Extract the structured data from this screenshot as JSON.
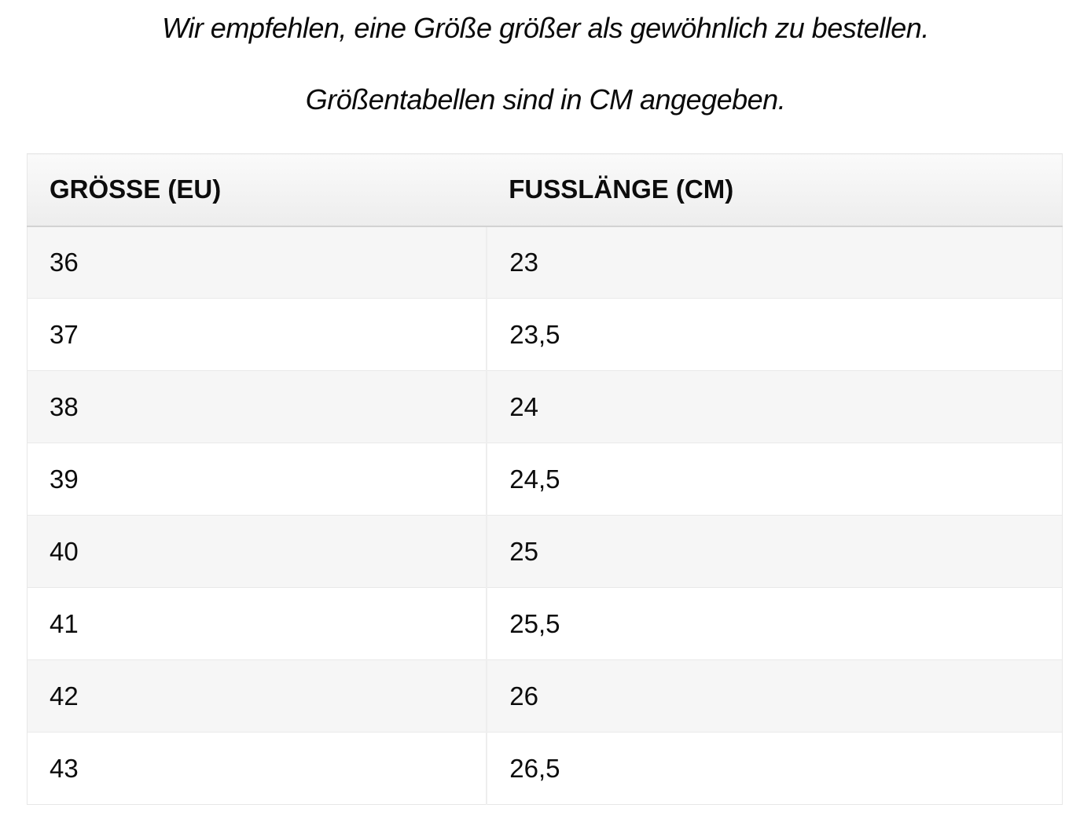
{
  "intro": {
    "line1": "Wir empfehlen, eine Größe größer als gewöhnlich zu bestellen.",
    "line2": "Größentabellen sind in CM angegeben."
  },
  "size_chart": {
    "columns": [
      "GRÖSSE (EU)",
      "FUSSLÄNGE (CM)"
    ],
    "rows": [
      [
        "36",
        "23"
      ],
      [
        "37",
        "23,5"
      ],
      [
        "38",
        "24"
      ],
      [
        "39",
        "24,5"
      ],
      [
        "40",
        "25"
      ],
      [
        "41",
        "25,5"
      ],
      [
        "42",
        "26"
      ],
      [
        "43",
        "26,5"
      ]
    ]
  },
  "colors": {
    "text": "#111111",
    "row_stripe": "#f6f6f6",
    "row_border": "#e9e9e9",
    "table_border": "#e7e7e7",
    "header_border": "#d2d2d2",
    "header_grad_top": "#fafafa",
    "header_grad_bottom": "#ededed"
  }
}
